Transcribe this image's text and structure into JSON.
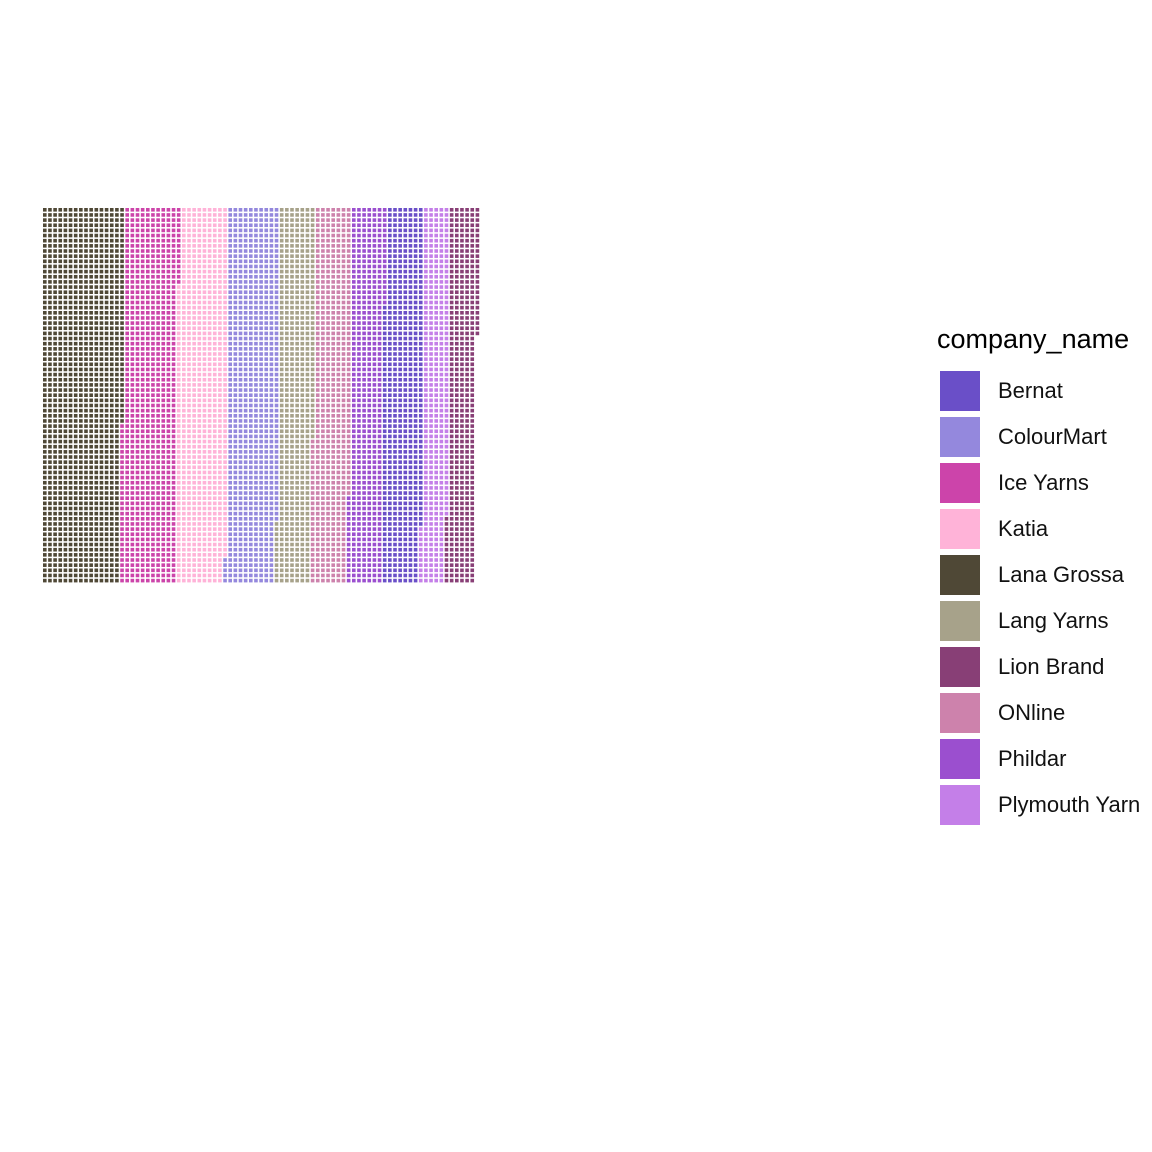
{
  "chart_data": {
    "type": "waffle",
    "title": "",
    "xlabel": "",
    "ylabel": "",
    "grid": false,
    "legend_position": "right",
    "legend_title": "company_name",
    "rows": 73,
    "fill_order": "column-major, top-to-bottom then left-to-right",
    "series": [
      {
        "name": "Lana Grossa",
        "color": "#4F4836",
        "value": 1137
      },
      {
        "name": "Ice Yarns",
        "color": "#CC44AA",
        "value": 776
      },
      {
        "name": "Katia",
        "color": "#FFB3D8",
        "value": 710
      },
      {
        "name": "ColourMart",
        "color": "#9488DD",
        "value": 723
      },
      {
        "name": "Lang Yarns",
        "color": "#A7A28A",
        "value": 495
      },
      {
        "name": "ONline",
        "color": "#CD82AC",
        "value": 522
      },
      {
        "name": "Phildar",
        "color": "#9B4FCF",
        "value": 474
      },
      {
        "name": "Bernat",
        "color": "#6A4FC8",
        "value": 554
      },
      {
        "name": "Plymouth Yarn",
        "color": "#C47FE8",
        "value": 363
      },
      {
        "name": "Lion Brand",
        "color": "#883F76",
        "value": 403
      }
    ],
    "legend_order": [
      "Bernat",
      "ColourMart",
      "Ice Yarns",
      "Katia",
      "Lana Grossa",
      "Lang Yarns",
      "Lion Brand",
      "ONline",
      "Phildar",
      "Plymouth Yarn"
    ]
  }
}
